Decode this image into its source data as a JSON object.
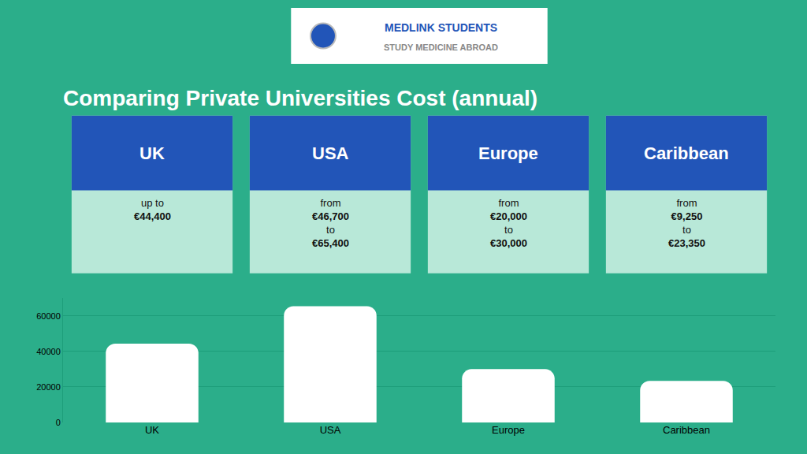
{
  "chart_data": {
    "type": "bar",
    "title": "Comparing Private Universities Cost (annual)",
    "categories": [
      "UK",
      "USA",
      "Europe",
      "Caribbean"
    ],
    "values": [
      44400,
      65400,
      30000,
      23350
    ],
    "color": "#ffffff",
    "ylim": [
      0,
      70000
    ],
    "yticks": [
      0,
      20000,
      40000,
      60000
    ],
    "grid": true,
    "annotations": [
      "MEDLINK STUDENTS",
      "STUDY MEDICINE ABROAD",
      "up to\n€44,400",
      "from\n€46,700\nto\n€65,400",
      "from\n€20,000\nto\n€30,000",
      "from\n€9,250\nto\n€23,350"
    ]
  }
}
